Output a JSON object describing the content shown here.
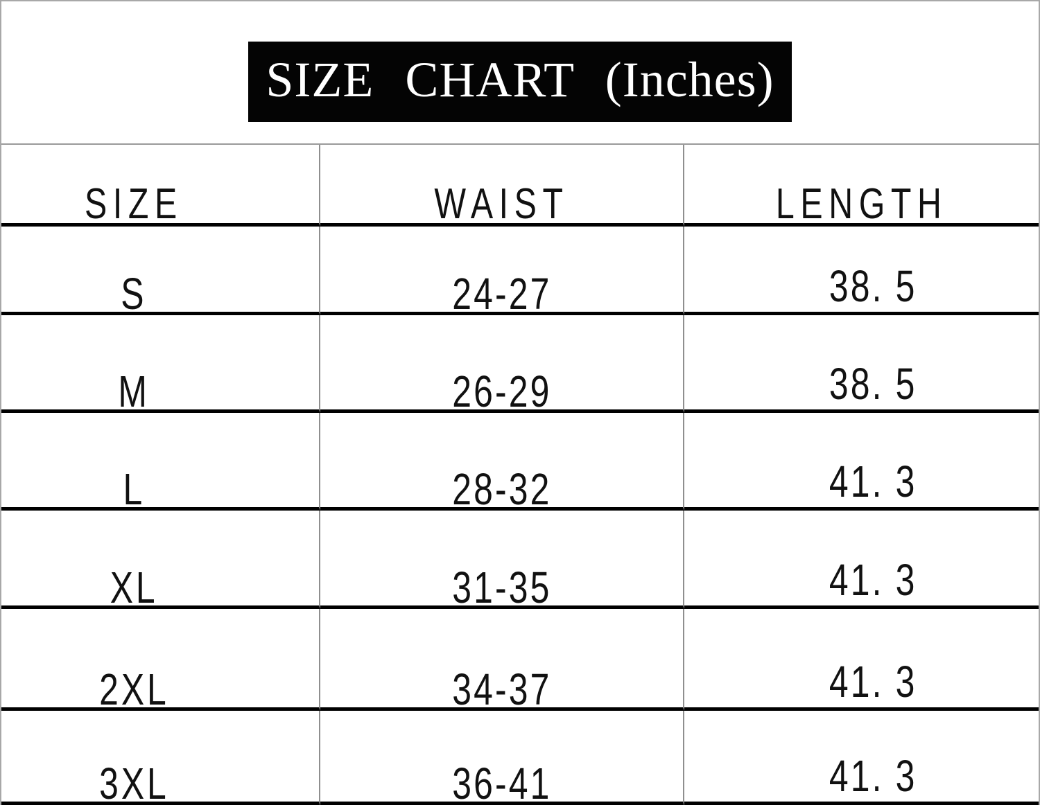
{
  "banner": {
    "title": "SIZE CHART (Inches)"
  },
  "table": {
    "headers": {
      "size": "SIZE",
      "waist": "WAIST",
      "length": "LENGTH"
    },
    "rows": [
      {
        "size": "S",
        "waist": "24-27",
        "length": "38. 5"
      },
      {
        "size": "M",
        "waist": "26-29",
        "length": "38. 5"
      },
      {
        "size": "L",
        "waist": "28-32",
        "length": "41. 3"
      },
      {
        "size": "XL",
        "waist": "31-35",
        "length": "41. 3"
      },
      {
        "size": "2XL",
        "waist": "34-37",
        "length": "41. 3"
      },
      {
        "size": "3XL",
        "waist": "36-41",
        "length": "41. 3"
      }
    ]
  },
  "colors": {
    "background": "#ffffff",
    "banner_bg": "#040404",
    "banner_text": "#ffffff",
    "text": "#111111",
    "thin_grid_line": "#8f8f8f",
    "thick_row_line": "#000000"
  },
  "chart_data": {
    "type": "table",
    "title": "SIZE CHART (Inches)",
    "unit": "Inches",
    "columns": [
      "SIZE",
      "WAIST",
      "LENGTH"
    ],
    "rows": [
      [
        "S",
        "24-27",
        38.5
      ],
      [
        "M",
        "26-29",
        38.5
      ],
      [
        "L",
        "28-32",
        41.3
      ],
      [
        "XL",
        "31-35",
        41.3
      ],
      [
        "2XL",
        "34-37",
        41.3
      ],
      [
        "3XL",
        "36-41",
        41.3
      ]
    ]
  }
}
